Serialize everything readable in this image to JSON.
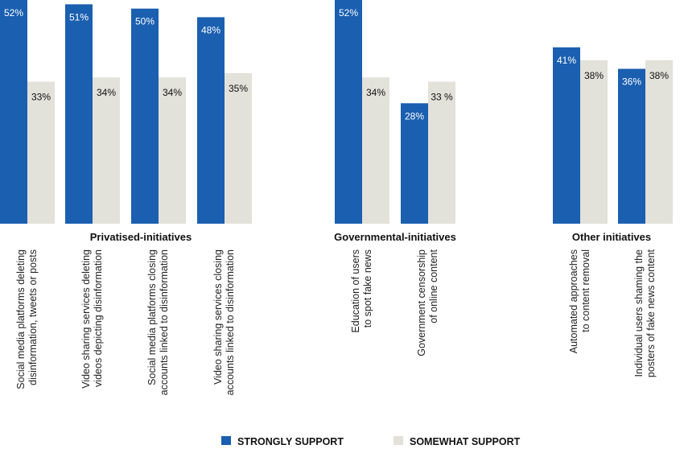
{
  "colors": {
    "strongly": "#1a5fb0",
    "somewhat": "#e2e1da"
  },
  "chart_data": {
    "type": "bar",
    "title": "",
    "xlabel": "",
    "ylabel": "",
    "ylim": [
      0,
      52
    ],
    "grid": false,
    "legend_position": "bottom",
    "groups": [
      {
        "label": "Privatised-initiatives",
        "categories": [
          0,
          1,
          2,
          3
        ]
      },
      {
        "label": "Governmental-initiatives",
        "categories": [
          4,
          5
        ]
      },
      {
        "label": "Other initiatives",
        "categories": [
          6,
          7
        ]
      }
    ],
    "categories": [
      [
        "Social media platforms deleting",
        "disinformation, tweets or posts"
      ],
      [
        "Video sharing services deleting",
        "videos depicting disinformation"
      ],
      [
        "Social media platforms closing",
        "accounts linked to disinformation"
      ],
      [
        "Video sharing services closing",
        "accounts linked to disinformation"
      ],
      [
        "Education of users",
        "to spot fake news"
      ],
      [
        "Government censorship",
        "of online content"
      ],
      [
        "Automated approaches",
        "to content removal"
      ],
      [
        "Individual users shaming the",
        "posters of fake news content"
      ]
    ],
    "series": [
      {
        "name": "STRONGLY SUPPORT",
        "values": [
          52,
          51,
          50,
          48,
          52,
          28,
          41,
          36
        ],
        "labels": [
          "52%",
          "51%",
          "50%",
          "48%",
          "52%",
          "28%",
          "41%",
          "36%"
        ]
      },
      {
        "name": "SOMEWHAT SUPPORT",
        "values": [
          33,
          34,
          34,
          35,
          34,
          33,
          38,
          38
        ],
        "labels": [
          "33%",
          "34%",
          "34%",
          "35%",
          "34%",
          "33 %",
          "38%",
          "38%"
        ]
      }
    ]
  }
}
